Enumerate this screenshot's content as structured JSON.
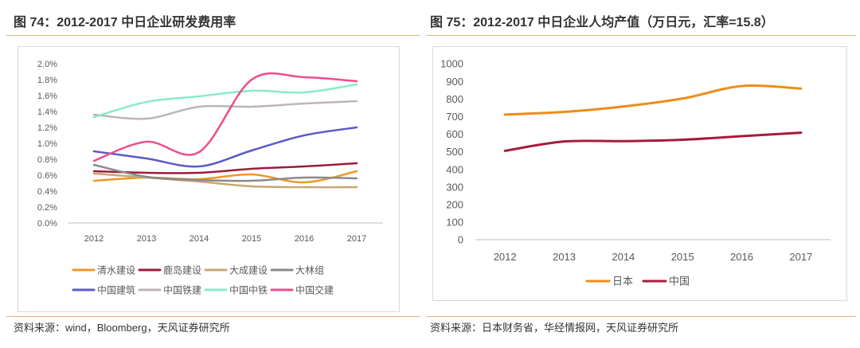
{
  "panels": {
    "left": {
      "title": "图 74：2012-2017 中日企业研发费用率",
      "source": "资料来源：wind，Bloomberg，天风证券研究所"
    },
    "right": {
      "title": "图 75：2012-2017 中日企业人均产值（万日元，汇率=15.8）",
      "source": "资料来源：日本财务省，华经情报网，天风证券研究所"
    }
  },
  "colors": {
    "rule": "#e7b27f",
    "frame": "#d9d9d9",
    "axis_line": "#bfbfbf",
    "axis_text": "#595959"
  },
  "chart_data": [
    {
      "type": "line",
      "categories": [
        "2012",
        "2013",
        "2014",
        "2015",
        "2016",
        "2017"
      ],
      "ylim": [
        0,
        2.0
      ],
      "y_ticks": [
        {
          "value": 0.0,
          "label": "0.0%"
        },
        {
          "value": 0.2,
          "label": "0.2%"
        },
        {
          "value": 0.4,
          "label": "0.4%"
        },
        {
          "value": 0.6,
          "label": "0.6%"
        },
        {
          "value": 0.8,
          "label": "0.8%"
        },
        {
          "value": 1.0,
          "label": "1.0%"
        },
        {
          "value": 1.2,
          "label": "1.2%"
        },
        {
          "value": 1.4,
          "label": "1.4%"
        },
        {
          "value": 1.6,
          "label": "1.6%"
        },
        {
          "value": 1.8,
          "label": "1.8%"
        },
        {
          "value": 2.0,
          "label": "2.0%"
        }
      ],
      "grid": false,
      "legend": "bottom",
      "series": [
        {
          "name": "清水建设",
          "color": "#f0962a",
          "values": [
            0.53,
            0.57,
            0.55,
            0.61,
            0.51,
            0.65
          ]
        },
        {
          "name": "鹿岛建设",
          "color": "#9c1b3e",
          "values": [
            0.65,
            0.63,
            0.63,
            0.68,
            0.71,
            0.75
          ]
        },
        {
          "name": "大成建设",
          "color": "#c8a771",
          "values": [
            0.62,
            0.57,
            0.52,
            0.46,
            0.45,
            0.45
          ]
        },
        {
          "name": "大林组",
          "color": "#8a8a8a",
          "values": [
            0.73,
            0.58,
            0.54,
            0.53,
            0.57,
            0.56
          ]
        },
        {
          "name": "中国建筑",
          "color": "#5a5ac8",
          "values": [
            0.9,
            0.81,
            0.71,
            0.91,
            1.1,
            1.2
          ]
        },
        {
          "name": "中国铁建",
          "color": "#bdb5b9",
          "values": [
            1.36,
            1.31,
            1.46,
            1.46,
            1.5,
            1.53
          ]
        },
        {
          "name": "中国中铁",
          "color": "#8aebc8",
          "values": [
            1.33,
            1.52,
            1.59,
            1.66,
            1.64,
            1.74
          ]
        },
        {
          "name": "中国交建",
          "color": "#ee4c8e",
          "values": [
            0.78,
            1.02,
            0.89,
            1.8,
            1.83,
            1.78
          ]
        }
      ]
    },
    {
      "type": "line",
      "categories": [
        "2012",
        "2013",
        "2014",
        "2015",
        "2016",
        "2017"
      ],
      "ylim": [
        0,
        1000
      ],
      "y_ticks": [
        {
          "value": 0,
          "label": "0"
        },
        {
          "value": 100,
          "label": "100"
        },
        {
          "value": 200,
          "label": "200"
        },
        {
          "value": 300,
          "label": "300"
        },
        {
          "value": 400,
          "label": "400"
        },
        {
          "value": 500,
          "label": "500"
        },
        {
          "value": 600,
          "label": "600"
        },
        {
          "value": 700,
          "label": "700"
        },
        {
          "value": 800,
          "label": "800"
        },
        {
          "value": 900,
          "label": "900"
        },
        {
          "value": 1000,
          "label": "1000"
        }
      ],
      "grid": false,
      "legend": "bottom",
      "series": [
        {
          "name": "日本",
          "color": "#ee8b1a",
          "values": [
            711,
            726,
            757,
            802,
            873,
            859
          ]
        },
        {
          "name": "中国",
          "color": "#a51c3c",
          "values": [
            505,
            558,
            560,
            568,
            588,
            608
          ]
        }
      ]
    }
  ]
}
